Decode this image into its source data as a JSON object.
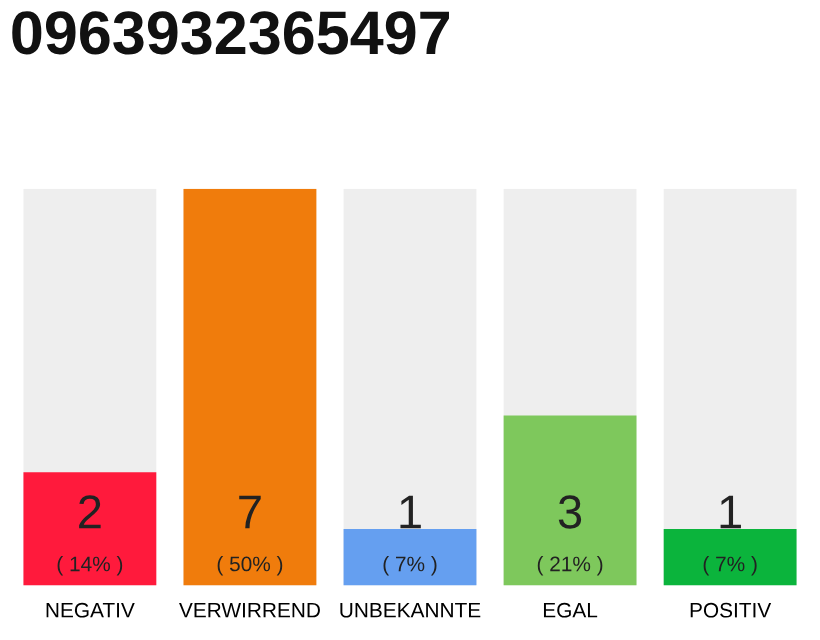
{
  "chart_data": {
    "type": "bar",
    "title": "0963932365497",
    "categories": [
      "NEGATIV",
      "VERWIRREND",
      "UNBEKANNTE",
      "EGAL",
      "POSITIV"
    ],
    "values": [
      2,
      7,
      1,
      3,
      1
    ],
    "colors": [
      "#ff1a3c",
      "#f07c0c",
      "#659ff0",
      "#7ec85c",
      "#0bb43c"
    ],
    "value_labels": [
      "2\n( 14% )",
      "7\n( 50% )",
      "1\n( 7% )",
      "3\n( 21% )",
      "1\n( 7% )"
    ],
    "ylim": [
      0,
      7
    ],
    "tick_labels": "x",
    "grid": false,
    "legend": false
  }
}
